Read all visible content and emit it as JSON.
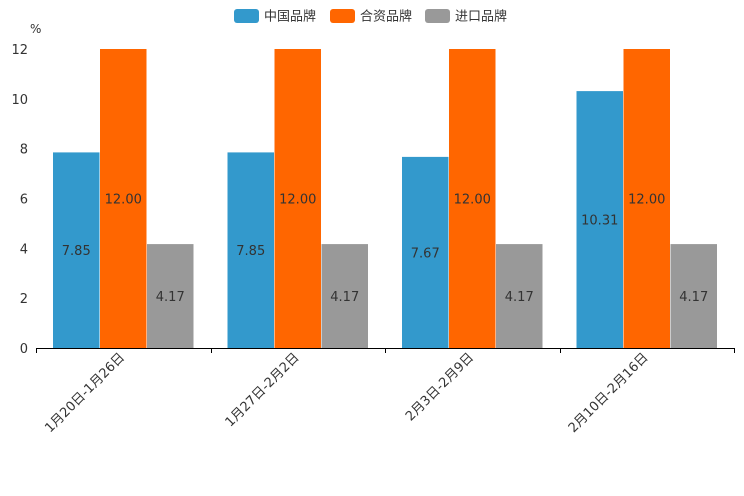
{
  "chart_data": {
    "type": "bar",
    "unit": "%",
    "categories": [
      "1月20日-1月26日",
      "1月27日-2月2日",
      "2月3日-2月9日",
      "2月10日-2月16日"
    ],
    "series": [
      {
        "name": "中国品牌",
        "color": "#3399CC",
        "values": [
          7.85,
          7.85,
          7.67,
          10.31
        ]
      },
      {
        "name": "合资品牌",
        "color": "#FF6600",
        "values": [
          12.0,
          12.0,
          12.0,
          12.0
        ]
      },
      {
        "name": "进口品牌",
        "color": "#999999",
        "values": [
          4.17,
          4.17,
          4.17,
          4.17
        ]
      }
    ],
    "ylim": [
      0,
      12
    ],
    "yticks": [
      0,
      2,
      4,
      6,
      8,
      10,
      12
    ],
    "legend_position": "top-center",
    "grid": false
  }
}
